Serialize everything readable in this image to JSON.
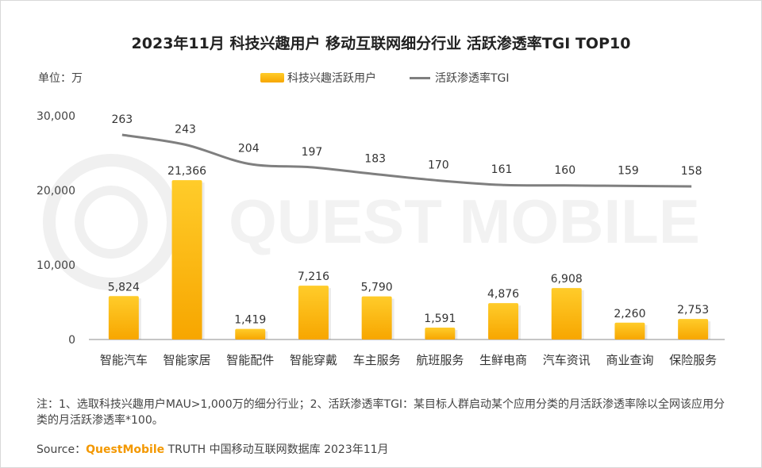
{
  "title": "2023年11月 科技兴趣用户 移动互联网细分行业 活跃渗透率TGI TOP10",
  "unit_label": "单位：万",
  "legend": {
    "bar_label": "科技兴趣活跃用户",
    "line_label": "活跃渗透率TGI"
  },
  "watermark": "QUEST MOBILE",
  "note": "注：1、选取科技兴趣用户MAU>1,000万的细分行业；2、活跃渗透率TGI：某目标人群启动某个应用分类的月活跃渗透率除以全网该应用分类的月活跃渗透率*100。",
  "source": {
    "prefix": "Source：",
    "brand": "QuestMobile",
    "rest": " TRUTH 中国移动互联网数据库 2023年11月"
  },
  "colors": {
    "bar_top": "#ffcc2a",
    "bar_bottom": "#f7a600",
    "line": "#7f7f7f",
    "brand": "#f39800"
  },
  "chart_data": {
    "type": "bar",
    "title": "2023年11月 科技兴趣用户 移动互联网细分行业 活跃渗透率TGI TOP10",
    "categories": [
      "智能汽车",
      "智能家居",
      "智能配件",
      "智能穿戴",
      "车主服务",
      "航班服务",
      "生鲜电商",
      "汽车资讯",
      "商业查询",
      "保险服务"
    ],
    "series": [
      {
        "name": "科技兴趣活跃用户",
        "type": "bar",
        "values": [
          5824,
          21366,
          1419,
          7216,
          5790,
          1591,
          4876,
          6908,
          2260,
          2753
        ]
      },
      {
        "name": "活跃渗透率TGI",
        "type": "line",
        "values": [
          263,
          243,
          204,
          197,
          183,
          170,
          161,
          160,
          159,
          158
        ]
      }
    ],
    "yticks": [
      "0",
      "10,000",
      "20,000",
      "30,000"
    ],
    "ylim": [
      0,
      30000
    ],
    "grid": false,
    "legend_position": "top"
  }
}
